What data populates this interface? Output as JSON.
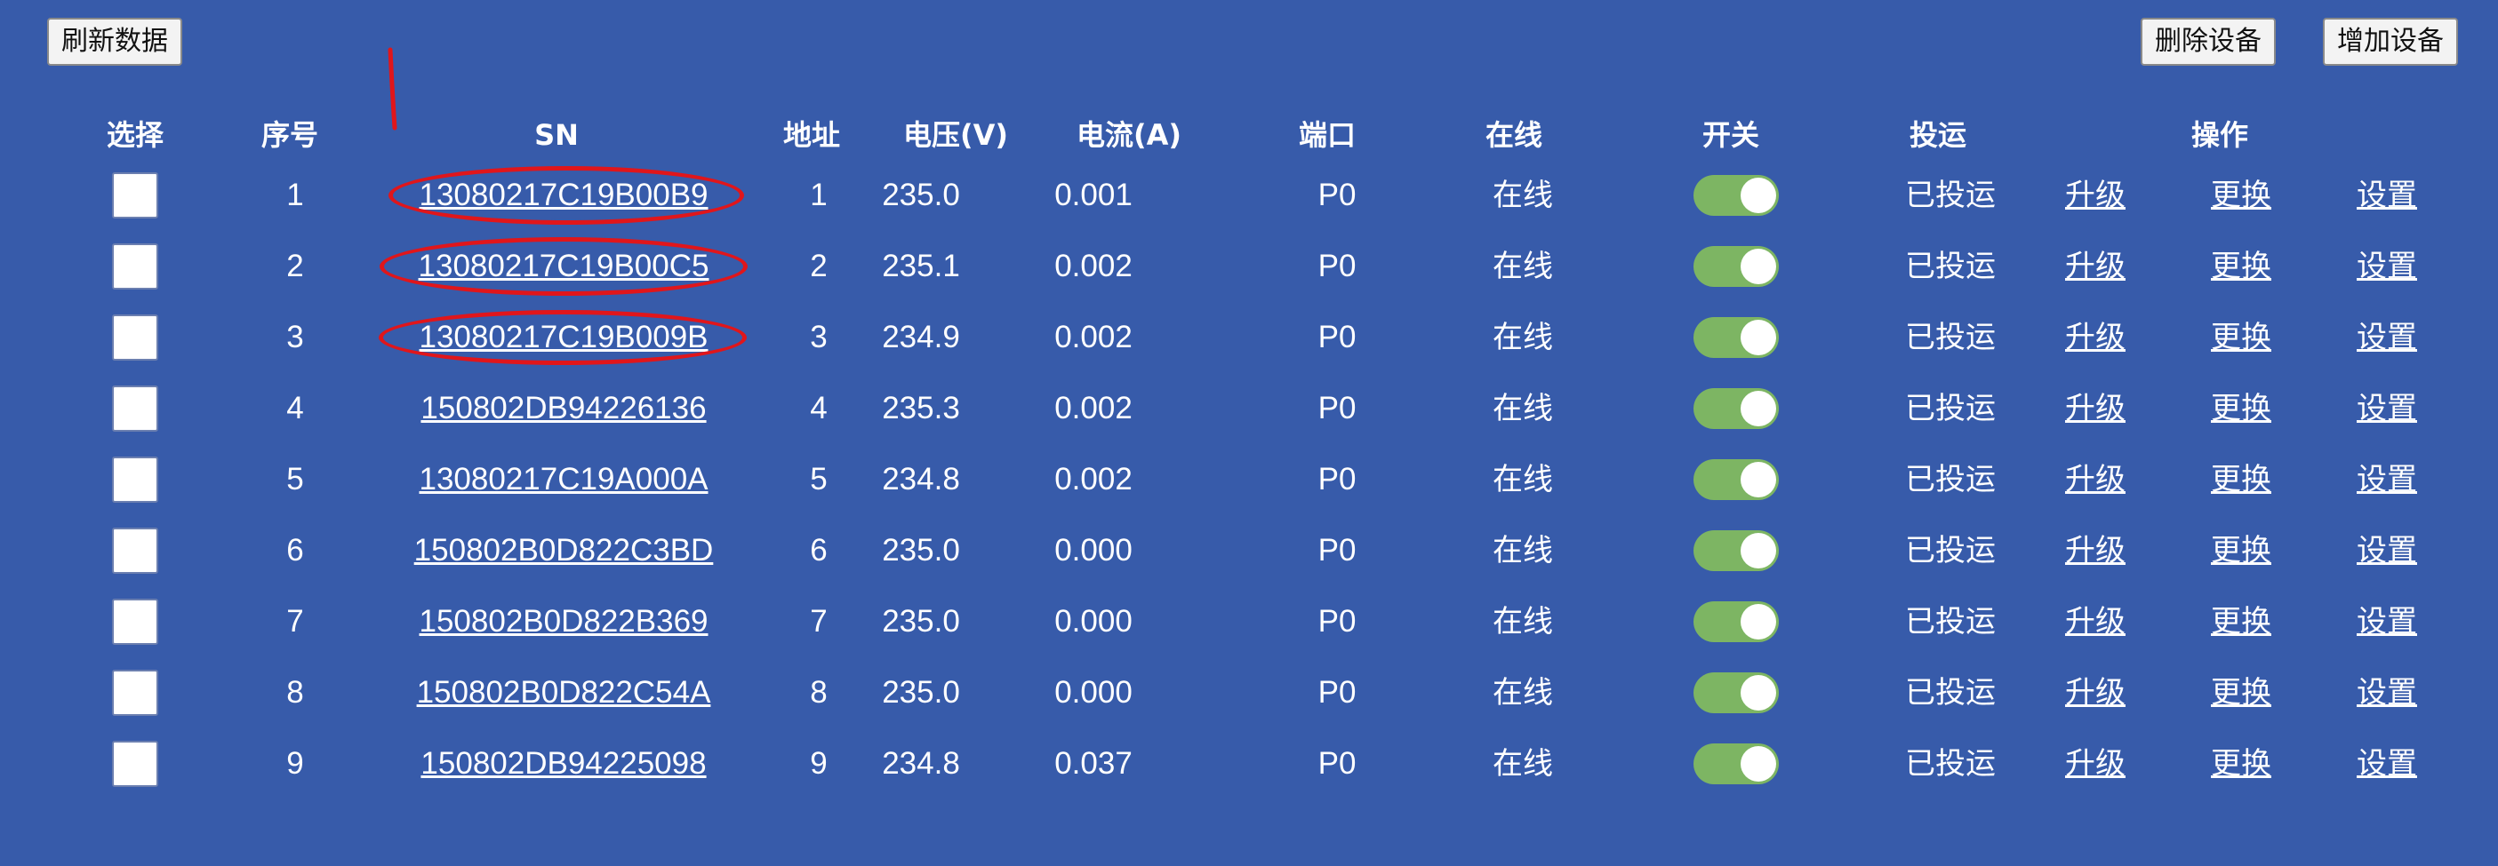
{
  "toolbar": {
    "refresh_label": "刷新数据",
    "delete_label": "删除设备",
    "add_label": "增加设备"
  },
  "table": {
    "headers": {
      "select": "选择",
      "index": "序号",
      "sn": "SN",
      "address": "地址",
      "voltage": "电压(V)",
      "current": "电流(A)",
      "port": "端口",
      "online": "在线",
      "switch": "开关",
      "commission": "投运",
      "actions": "操作"
    },
    "rows": [
      {
        "index": "1",
        "sn": "13080217C19B00B9",
        "address": "1",
        "voltage": "235.0",
        "current": "0.001",
        "port": "P0",
        "online": "在线",
        "switch_on": true,
        "commission": "已投运",
        "upgrade": "升级",
        "replace": "更换",
        "settings": "设置"
      },
      {
        "index": "2",
        "sn": "13080217C19B00C5",
        "address": "2",
        "voltage": "235.1",
        "current": "0.002",
        "port": "P0",
        "online": "在线",
        "switch_on": true,
        "commission": "已投运",
        "upgrade": "升级",
        "replace": "更换",
        "settings": "设置"
      },
      {
        "index": "3",
        "sn": "13080217C19B009B",
        "address": "3",
        "voltage": "234.9",
        "current": "0.002",
        "port": "P0",
        "online": "在线",
        "switch_on": true,
        "commission": "已投运",
        "upgrade": "升级",
        "replace": "更换",
        "settings": "设置"
      },
      {
        "index": "4",
        "sn": "150802DB94226136",
        "address": "4",
        "voltage": "235.3",
        "current": "0.002",
        "port": "P0",
        "online": "在线",
        "switch_on": true,
        "commission": "已投运",
        "upgrade": "升级",
        "replace": "更换",
        "settings": "设置"
      },
      {
        "index": "5",
        "sn": "13080217C19A000A",
        "address": "5",
        "voltage": "234.8",
        "current": "0.002",
        "port": "P0",
        "online": "在线",
        "switch_on": true,
        "commission": "已投运",
        "upgrade": "升级",
        "replace": "更换",
        "settings": "设置"
      },
      {
        "index": "6",
        "sn": "150802B0D822C3BD",
        "address": "6",
        "voltage": "235.0",
        "current": "0.000",
        "port": "P0",
        "online": "在线",
        "switch_on": true,
        "commission": "已投运",
        "upgrade": "升级",
        "replace": "更换",
        "settings": "设置"
      },
      {
        "index": "7",
        "sn": "150802B0D822B369",
        "address": "7",
        "voltage": "235.0",
        "current": "0.000",
        "port": "P0",
        "online": "在线",
        "switch_on": true,
        "commission": "已投运",
        "upgrade": "升级",
        "replace": "更换",
        "settings": "设置"
      },
      {
        "index": "8",
        "sn": "150802B0D822C54A",
        "address": "8",
        "voltage": "235.0",
        "current": "0.000",
        "port": "P0",
        "online": "在线",
        "switch_on": true,
        "commission": "已投运",
        "upgrade": "升级",
        "replace": "更换",
        "settings": "设置"
      },
      {
        "index": "9",
        "sn": "150802DB94225098",
        "address": "9",
        "voltage": "234.8",
        "current": "0.037",
        "port": "P0",
        "online": "在线",
        "switch_on": true,
        "commission": "已投运",
        "upgrade": "升级",
        "replace": "更换",
        "settings": "设置"
      }
    ]
  },
  "annotations": {
    "highlighted_rows": [
      0,
      1,
      2
    ],
    "mark_color": "#e0161b"
  },
  "colors": {
    "background": "#375baa",
    "toggle_on": "#7db563"
  }
}
